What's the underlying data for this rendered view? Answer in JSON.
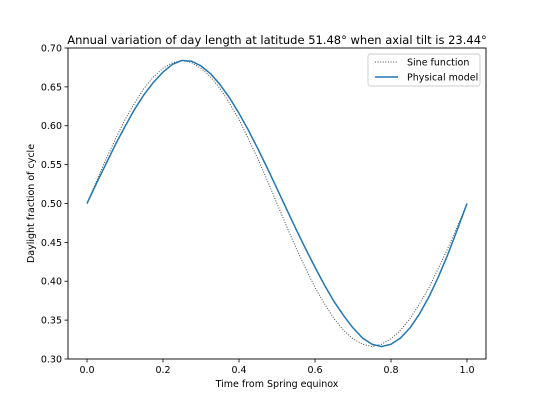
{
  "chart_data": {
    "type": "line",
    "title": "Annual variation of day length at latitude 51.48° when axial tilt is 23.44°",
    "xlabel": "Time from Spring equinox",
    "ylabel": "Daylight fraction of cycle",
    "xlim": [
      -0.05,
      1.05
    ],
    "ylim": [
      0.3,
      0.7
    ],
    "xticks": [
      "0.0",
      "0.2",
      "0.4",
      "0.6",
      "0.8",
      "1.0"
    ],
    "yticks": [
      "0.30",
      "0.35",
      "0.40",
      "0.45",
      "0.50",
      "0.55",
      "0.60",
      "0.65",
      "0.70"
    ],
    "grid": false,
    "legend_position": "top-right",
    "series": [
      {
        "name": "Sine function",
        "style": "dotted",
        "color": "#4a4a4a",
        "x": [
          0.0,
          0.025,
          0.05,
          0.075,
          0.1,
          0.125,
          0.15,
          0.175,
          0.2,
          0.225,
          0.25,
          0.275,
          0.3,
          0.325,
          0.35,
          0.375,
          0.4,
          0.425,
          0.45,
          0.475,
          0.5,
          0.525,
          0.55,
          0.575,
          0.6,
          0.625,
          0.65,
          0.675,
          0.7,
          0.725,
          0.75,
          0.775,
          0.8,
          0.825,
          0.85,
          0.875,
          0.9,
          0.925,
          0.95,
          0.975,
          1.0
        ],
        "values": [
          0.5,
          0.529,
          0.557,
          0.583,
          0.608,
          0.629,
          0.648,
          0.663,
          0.674,
          0.681,
          0.684,
          0.681,
          0.674,
          0.663,
          0.648,
          0.629,
          0.608,
          0.583,
          0.557,
          0.529,
          0.5,
          0.471,
          0.443,
          0.417,
          0.392,
          0.371,
          0.352,
          0.337,
          0.326,
          0.319,
          0.316,
          0.319,
          0.326,
          0.337,
          0.352,
          0.371,
          0.392,
          0.417,
          0.443,
          0.471,
          0.5
        ]
      },
      {
        "name": "Physical model",
        "style": "solid",
        "color": "#1f77b4",
        "x": [
          0.0,
          0.025,
          0.05,
          0.075,
          0.1,
          0.125,
          0.15,
          0.175,
          0.2,
          0.225,
          0.25,
          0.275,
          0.3,
          0.325,
          0.35,
          0.375,
          0.4,
          0.425,
          0.45,
          0.475,
          0.5,
          0.525,
          0.55,
          0.575,
          0.6,
          0.625,
          0.65,
          0.675,
          0.7,
          0.725,
          0.75,
          0.775,
          0.8,
          0.825,
          0.85,
          0.875,
          0.9,
          0.925,
          0.95,
          0.975,
          1.0
        ],
        "values": [
          0.5,
          0.526,
          0.551,
          0.576,
          0.599,
          0.621,
          0.64,
          0.656,
          0.669,
          0.679,
          0.684,
          0.683,
          0.677,
          0.667,
          0.653,
          0.636,
          0.616,
          0.594,
          0.57,
          0.545,
          0.519,
          0.493,
          0.467,
          0.442,
          0.418,
          0.395,
          0.374,
          0.356,
          0.34,
          0.327,
          0.319,
          0.316,
          0.319,
          0.327,
          0.34,
          0.358,
          0.38,
          0.406,
          0.435,
          0.467,
          0.5
        ]
      }
    ]
  }
}
